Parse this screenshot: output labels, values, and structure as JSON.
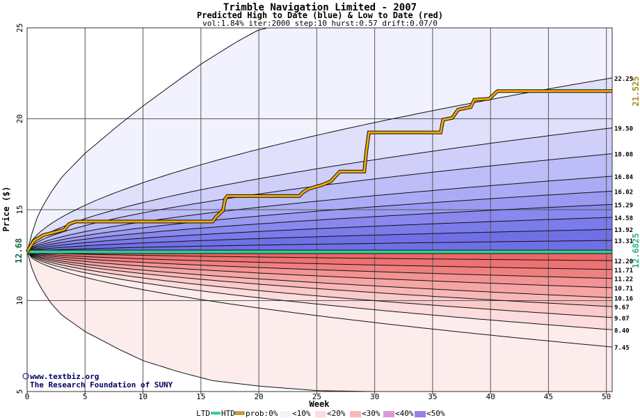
{
  "chart_data": {
    "type": "area",
    "title": "Trimble Navigation Limited - 2007",
    "subtitle": "Predicted High to Date (blue) &  Low to Date (red)",
    "params": "vol:1.84% iter:2000 step:10 hurst:0.57 drift:0.07/0",
    "xlabel": "Week",
    "ylabel": "Price ($)",
    "xlim": [
      0,
      50.5
    ],
    "ylim": [
      5,
      25
    ],
    "x_ticks": [
      0,
      5,
      10,
      15,
      20,
      25,
      30,
      35,
      40,
      45,
      50
    ],
    "y_ticks": [
      5,
      10,
      15,
      20,
      25
    ],
    "grid": true,
    "start_price_label": "12.68",
    "start_price": 12.68,
    "current_price_label": "12.6825",
    "current_price": 12.6825,
    "high_to_date_label": "21.525",
    "high_to_date_value": 21.525,
    "upper_percentile_labels": [
      "22.25",
      "19.50",
      "18.08",
      "16.84",
      "16.02",
      "15.29",
      "14.58",
      "13.92",
      "13.31"
    ],
    "upper_percentile_values": [
      22.25,
      19.5,
      18.08,
      16.84,
      16.02,
      15.29,
      14.58,
      13.92,
      13.31
    ],
    "lower_percentile_labels": [
      "12.20",
      "11.71",
      "11.22",
      "10.71",
      "10.16",
      "9.67",
      "9.07",
      "8.40",
      "7.45"
    ],
    "lower_percentile_values": [
      12.2,
      11.71,
      11.22,
      10.71,
      10.16,
      9.67,
      9.07,
      8.4,
      7.45
    ],
    "outer_upper_curve": [
      [
        0,
        12.68
      ],
      [
        0.5,
        13.9
      ],
      [
        1,
        14.8
      ],
      [
        2,
        15.9
      ],
      [
        3,
        16.8
      ],
      [
        5,
        18.1
      ],
      [
        8,
        19.7
      ],
      [
        10,
        20.7
      ],
      [
        13,
        22.1
      ],
      [
        15,
        23.0
      ],
      [
        18,
        24.2
      ],
      [
        20,
        24.9
      ],
      [
        21,
        25.0
      ]
    ],
    "outer_lower_curve": [
      [
        0,
        12.68
      ],
      [
        0.5,
        11.6
      ],
      [
        1,
        10.9
      ],
      [
        2,
        9.9
      ],
      [
        3,
        9.2
      ],
      [
        5,
        8.3
      ],
      [
        8,
        7.3
      ],
      [
        10,
        6.7
      ],
      [
        13,
        6.1
      ],
      [
        16,
        5.6
      ],
      [
        20,
        5.3
      ],
      [
        25,
        5.05
      ],
      [
        30,
        5.0
      ]
    ],
    "high_to_date_series": [
      [
        0,
        12.68
      ],
      [
        0.3,
        13.0
      ],
      [
        0.6,
        13.3
      ],
      [
        1.4,
        13.6
      ],
      [
        2,
        13.7
      ],
      [
        3.2,
        13.9
      ],
      [
        3.6,
        14.2
      ],
      [
        4.2,
        14.35
      ],
      [
        16,
        14.35
      ],
      [
        16.3,
        14.6
      ],
      [
        16.9,
        14.95
      ],
      [
        17.1,
        15.6
      ],
      [
        17.3,
        15.75
      ],
      [
        23.5,
        15.75
      ],
      [
        23.8,
        15.95
      ],
      [
        24.3,
        16.15
      ],
      [
        25.4,
        16.35
      ],
      [
        26.2,
        16.55
      ],
      [
        26.7,
        16.9
      ],
      [
        27,
        17.1
      ],
      [
        29.1,
        17.1
      ],
      [
        29.3,
        18.3
      ],
      [
        29.5,
        19.25
      ],
      [
        35.7,
        19.25
      ],
      [
        35.9,
        19.95
      ],
      [
        36.7,
        20.05
      ],
      [
        37.2,
        20.5
      ],
      [
        38.3,
        20.65
      ],
      [
        38.6,
        21.05
      ],
      [
        39.9,
        21.1
      ],
      [
        40.3,
        21.35
      ],
      [
        40.6,
        21.525
      ],
      [
        50.5,
        21.525
      ]
    ],
    "low_to_date_value": 12.6825,
    "legend": {
      "ltd": "LTD",
      "htd": "HTD",
      "prob": "prob:0%",
      "p10": "<10%",
      "p20": "<20%",
      "p30": "<30%",
      "p40": "<40%",
      "p50": "<50%"
    },
    "colors": {
      "htd_line": "#f0a800",
      "ltd_line": "#33cc99",
      "blue_bands": [
        "#f2f2fe",
        "#e0e0fc",
        "#cfcffa",
        "#bdbdf7",
        "#ababf5",
        "#9a9af2",
        "#8888ee",
        "#7b7bea",
        "#7070e6"
      ],
      "red_bands": [
        "#fdecec",
        "#fcdcdc",
        "#fbcaca",
        "#f9b8b8",
        "#f6a5a5",
        "#f39393",
        "#f08080",
        "#ee7272",
        "#ec6868"
      ]
    }
  },
  "watermark": {
    "url": "www.textbiz.org",
    "org": "The Research Foundation of SUNY"
  }
}
